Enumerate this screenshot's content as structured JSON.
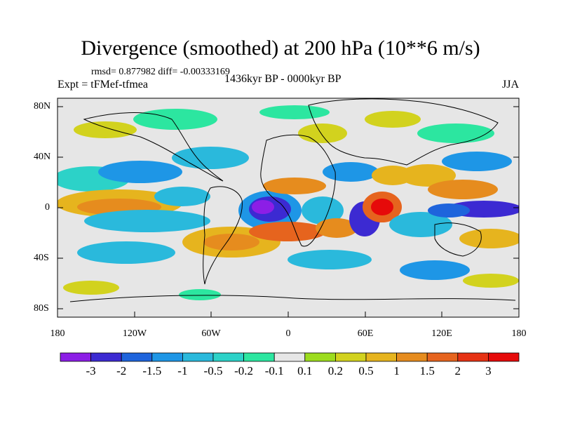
{
  "title": "Divergence (smoothed) at 200 hPa (10**6 m/s)",
  "stats": "rmsd= 0.877982 diff= -0.00333169",
  "experiment": "Expt = tFMef-tfmea",
  "period": "1436kyr BP - 0000kyr BP",
  "season": "JJA",
  "map": {
    "lat_ticks": [
      "80N",
      "40N",
      "0",
      "40S",
      "80S"
    ],
    "lon_ticks": [
      "180",
      "120W",
      "60W",
      "0",
      "60E",
      "120E",
      "180"
    ]
  },
  "colorbar": {
    "labels": [
      "-3",
      "-2",
      "-1.5",
      "-1",
      "-0.5",
      "-0.2",
      "-0.1",
      "0.1",
      "0.2",
      "0.5",
      "1",
      "1.5",
      "2",
      "3"
    ],
    "colors": [
      "#8c1ee6",
      "#3c2ad2",
      "#1e64dc",
      "#1e96e6",
      "#2ab9dc",
      "#2cd2c8",
      "#2ce6a0",
      "#e6e6e6",
      "#9cdc1e",
      "#d2d21e",
      "#e6b41e",
      "#e68c1e",
      "#e6641e",
      "#e63214",
      "#e60a0a"
    ]
  }
}
